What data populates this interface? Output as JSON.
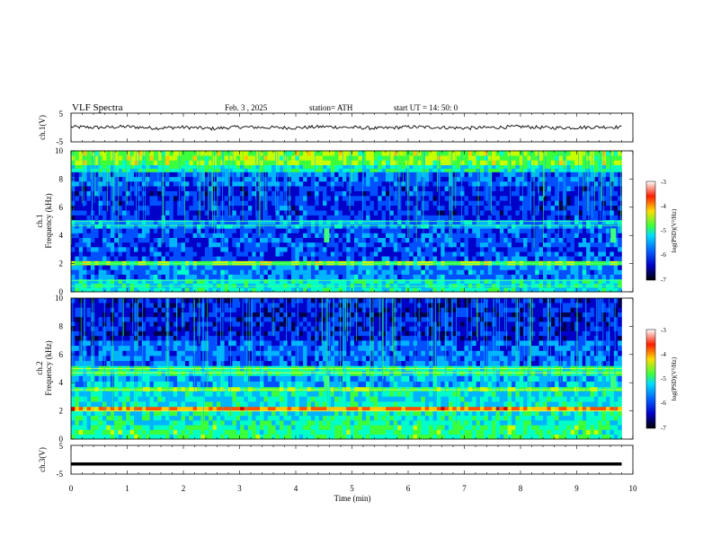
{
  "header": {
    "title": "VLF  Spectra",
    "date": "Feb. 3  , 2025",
    "station": "station= ATH",
    "start": "start  UT  =   14: 50: 0"
  },
  "chart_data": [
    {
      "type": "line",
      "panel": "ch1-waveform",
      "ylabel": "ch.1(V)",
      "ylim": [
        -5,
        5
      ],
      "yticks": [
        "5",
        "-5"
      ],
      "xlim": [
        0,
        10
      ],
      "series": [
        {
          "x": [
            0.0,
            0.5,
            1.0,
            1.5,
            2.0,
            2.5,
            3.0,
            3.5,
            4.0,
            4.5,
            5.0,
            5.5,
            6.0,
            6.5,
            7.0,
            7.5,
            8.0,
            8.5,
            9.0,
            9.5,
            9.8
          ],
          "values": [
            0.2,
            0.0,
            0.3,
            -0.2,
            0.1,
            -0.4,
            0.2,
            0.0,
            -0.1,
            0.3,
            0.0,
            -0.3,
            0.2,
            0.1,
            -0.2,
            0.0,
            0.3,
            -0.1,
            0.0,
            0.2,
            0.1
          ]
        }
      ]
    },
    {
      "type": "heatmap",
      "panel": "ch1-spectrogram",
      "ylabel": "ch.1\nFrequency  (kHz)",
      "ylim": [
        0,
        10
      ],
      "yticks": [
        "0",
        "2",
        "4",
        "6",
        "8",
        "10"
      ],
      "xlim": [
        0,
        10
      ],
      "colorbar": {
        "label": "log(PSD)(V²/Hz)",
        "range": [
          -7,
          -3
        ],
        "ticks": [
          "-3",
          "-4",
          "-5",
          "-6",
          "-7"
        ]
      },
      "features": {
        "intense_band_khz": [
          9.0,
          10.0
        ],
        "lines_khz": [
          0.4,
          0.8,
          2.0,
          4.7,
          5.0
        ],
        "bursts": [
          {
            "t_min": 4.55,
            "f_khz": 4.0
          },
          {
            "t_min": 9.65,
            "f_khz": 4.0
          }
        ]
      }
    },
    {
      "type": "heatmap",
      "panel": "ch2-spectrogram",
      "ylabel": "ch.2\nFrequency  (kHz)",
      "ylim": [
        0,
        10
      ],
      "yticks": [
        "0",
        "2",
        "4",
        "6",
        "8",
        "10"
      ],
      "xlim": [
        0,
        10
      ],
      "colorbar": {
        "label": "log(PSD)(V²/Hz)",
        "range": [
          -7,
          -3
        ],
        "ticks": [
          "-3",
          "-4",
          "-5",
          "-6",
          "-7"
        ]
      },
      "features": {
        "lines_khz": [
          2.0,
          3.5,
          4.7,
          5.0
        ],
        "bursts": [
          {
            "t_min": 4.55,
            "f_khz": 4.0
          },
          {
            "t_min": 9.65,
            "f_khz": 4.0
          }
        ]
      }
    },
    {
      "type": "line",
      "panel": "ch3-waveform",
      "ylabel": "ch.3(V)",
      "ylim": [
        -5,
        5
      ],
      "yticks": [
        "5",
        "-5"
      ],
      "xlim": [
        0,
        10
      ],
      "series": [
        {
          "x": [
            0,
            9.8
          ],
          "values": [
            -1.5,
            -1.5
          ]
        }
      ]
    }
  ],
  "xaxis": {
    "label": "Time  (min)",
    "ticks": [
      "0",
      "1",
      "2",
      "3",
      "4",
      "5",
      "6",
      "7",
      "8",
      "9",
      "10"
    ]
  },
  "colors": {
    "spectrum": [
      "#000050",
      "#0000c8",
      "#0050ff",
      "#00b4ff",
      "#00ffc8",
      "#3cff3c",
      "#c8ff00",
      "#ffc800",
      "#ff5000",
      "#c80000",
      "#ffffff"
    ]
  }
}
